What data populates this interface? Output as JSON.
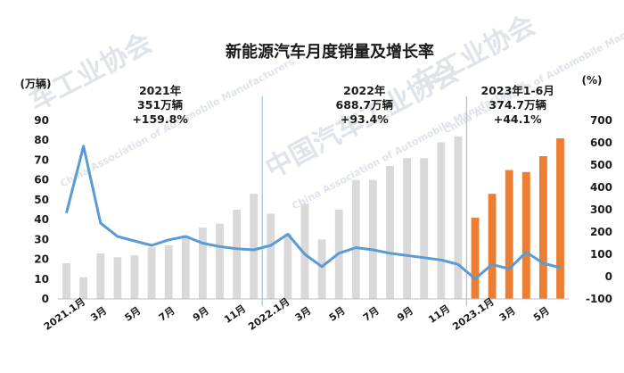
{
  "chart_data": {
    "type": "bar",
    "title": "新能源汽车月度销量及增长率",
    "left_axis_unit": "(万辆)",
    "right_axis_unit": "(%)",
    "ylim_left": [
      0,
      90
    ],
    "ylim_right": [
      -100,
      700
    ],
    "left_ticks": [
      "0",
      "10",
      "20",
      "30",
      "40",
      "50",
      "60",
      "70",
      "80",
      "90"
    ],
    "right_ticks": [
      "-100",
      "0",
      "100",
      "200",
      "300",
      "400",
      "500",
      "600",
      "700"
    ],
    "x_tick_labels": [
      "2021.1月",
      "3月",
      "5月",
      "7月",
      "9月",
      "11月",
      "2022.1月",
      "3月",
      "5月",
      "7月",
      "9月",
      "11月",
      "2023.1月",
      "3月",
      "5月"
    ],
    "categories": [
      "2021.1",
      "2021.2",
      "2021.3",
      "2021.4",
      "2021.5",
      "2021.6",
      "2021.7",
      "2021.8",
      "2021.9",
      "2021.10",
      "2021.11",
      "2021.12",
      "2022.1",
      "2022.2",
      "2022.3",
      "2022.4",
      "2022.5",
      "2022.6",
      "2022.7",
      "2022.8",
      "2022.9",
      "2022.10",
      "2022.11",
      "2022.12",
      "2023.1",
      "2023.2",
      "2023.3",
      "2023.4",
      "2023.5",
      "2023.6"
    ],
    "series": [
      {
        "kind": "bar",
        "values": [
          18,
          11,
          23,
          21,
          22,
          26,
          27,
          32,
          36,
          38,
          45,
          53,
          43,
          33,
          48,
          30,
          45,
          60,
          60,
          67,
          71,
          71,
          79,
          82,
          41,
          53,
          65,
          64,
          72,
          81
        ],
        "colors": [
          "#d9d9d9",
          "#d9d9d9",
          "#d9d9d9",
          "#d9d9d9",
          "#d9d9d9",
          "#d9d9d9",
          "#d9d9d9",
          "#d9d9d9",
          "#d9d9d9",
          "#d9d9d9",
          "#d9d9d9",
          "#d9d9d9",
          "#d9d9d9",
          "#d9d9d9",
          "#d9d9d9",
          "#d9d9d9",
          "#d9d9d9",
          "#d9d9d9",
          "#d9d9d9",
          "#d9d9d9",
          "#d9d9d9",
          "#d9d9d9",
          "#d9d9d9",
          "#d9d9d9",
          "#ed7d31",
          "#ed7d31",
          "#ed7d31",
          "#ed7d31",
          "#ed7d31",
          "#ed7d31"
        ]
      },
      {
        "kind": "line",
        "color": "#5b9bd5",
        "values": [
          285,
          585,
          240,
          180,
          160,
          140,
          165,
          180,
          150,
          135,
          125,
          120,
          140,
          190,
          100,
          45,
          105,
          130,
          120,
          105,
          95,
          85,
          75,
          55,
          -10,
          55,
          35,
          110,
          60,
          40
        ]
      }
    ],
    "annotations": [
      {
        "lines": [
          "2021年",
          "351万辆",
          "+159.8%"
        ]
      },
      {
        "lines": [
          "2022年",
          "688.7万辆",
          "+93.4%"
        ]
      },
      {
        "lines": [
          "2023年1-6月",
          "374.7万辆",
          "+44.1%"
        ]
      }
    ],
    "divider_color": "#9dc3e6",
    "grid": false
  },
  "watermark": {
    "text_1": "车工业协会",
    "text_2": "中国汽车工业协会",
    "text_3": "China Association of Automobile Manufacturers"
  }
}
